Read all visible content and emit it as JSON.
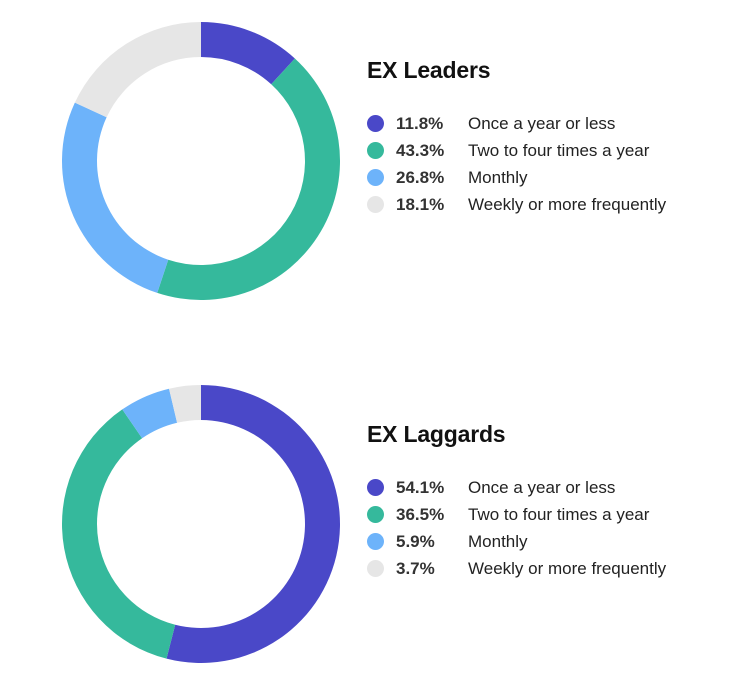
{
  "colors": {
    "once_a_year_or_less": "#4a48c8",
    "two_to_four_times_a_year": "#35b99c",
    "monthly": "#6db3fa",
    "weekly_or_more_frequently": "#e6e6e6"
  },
  "chart_data": [
    {
      "type": "pie",
      "title": "EX Leaders",
      "categories": [
        "Once a year or less",
        "Two to four times a year",
        "Monthly",
        "Weekly or more frequently"
      ],
      "values": [
        11.8,
        43.3,
        26.8,
        18.1
      ],
      "labels": [
        "11.8%",
        "43.3%",
        "26.8%",
        "18.1%"
      ],
      "colors": [
        "#4a48c8",
        "#35b99c",
        "#6db3fa",
        "#e6e6e6"
      ],
      "legend": "right"
    },
    {
      "type": "pie",
      "title": "EX Laggards",
      "categories": [
        "Once a year or less",
        "Two to four times a year",
        "Monthly",
        "Weekly or more frequently"
      ],
      "values": [
        54.1,
        36.5,
        5.9,
        3.7
      ],
      "labels": [
        "54.1%",
        "36.5%",
        "5.9%",
        "3.7%"
      ],
      "colors": [
        "#4a48c8",
        "#35b99c",
        "#6db3fa",
        "#e6e6e6"
      ],
      "legend": "right"
    }
  ]
}
